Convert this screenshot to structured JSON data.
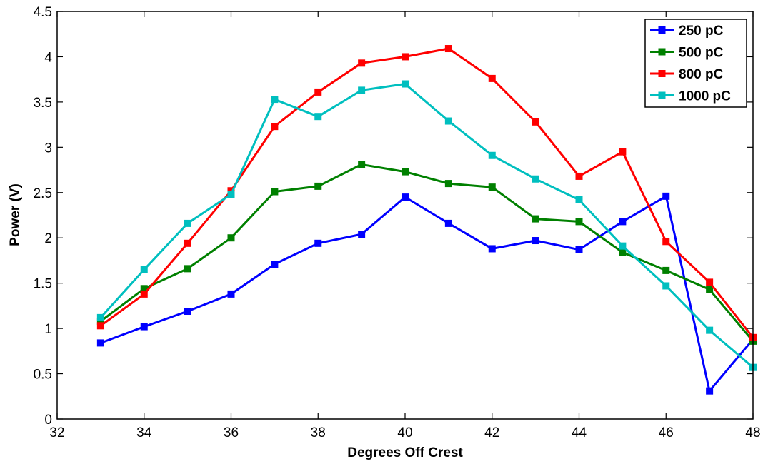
{
  "chart_data": {
    "type": "line",
    "title": "",
    "xlabel": "Degrees Off Crest",
    "ylabel": "Power (V)",
    "xlim": [
      32,
      48
    ],
    "ylim": [
      0,
      4.5
    ],
    "xticks": [
      32,
      34,
      36,
      38,
      40,
      42,
      44,
      46,
      48
    ],
    "yticks": [
      0,
      0.5,
      1,
      1.5,
      2,
      2.5,
      3,
      3.5,
      4,
      4.5
    ],
    "xtick_labels": [
      "32",
      "34",
      "36",
      "38",
      "40",
      "42",
      "44",
      "46",
      "48"
    ],
    "ytick_labels": [
      "0",
      "0.5",
      "1",
      "1.5",
      "2",
      "2.5",
      "3",
      "3.5",
      "4",
      "4.5"
    ],
    "grid": false,
    "legend_position": "top-right",
    "x": [
      33,
      34,
      35,
      36,
      37,
      38,
      39,
      40,
      41,
      42,
      43,
      44,
      45,
      46,
      47,
      48
    ],
    "series": [
      {
        "name": "250 pC",
        "color": "#0000ff",
        "marker": "square",
        "values": [
          0.84,
          1.02,
          1.19,
          1.38,
          1.71,
          1.94,
          2.04,
          2.45,
          2.16,
          1.88,
          1.97,
          1.87,
          2.18,
          2.46,
          0.31,
          0.88
        ]
      },
      {
        "name": "500 pC",
        "color": "#008000",
        "marker": "square",
        "values": [
          1.08,
          1.44,
          1.66,
          2.0,
          2.51,
          2.57,
          2.81,
          2.73,
          2.6,
          2.56,
          2.21,
          2.18,
          1.84,
          1.64,
          1.43,
          0.86
        ]
      },
      {
        "name": "800 pC",
        "color": "#ff0000",
        "marker": "square",
        "values": [
          1.03,
          1.38,
          1.94,
          2.52,
          3.23,
          3.61,
          3.93,
          4.0,
          4.09,
          3.76,
          3.28,
          2.68,
          2.95,
          1.96,
          1.51,
          0.9
        ]
      },
      {
        "name": "1000 pC",
        "color": "#00bfbf",
        "marker": "square",
        "values": [
          1.12,
          1.65,
          2.16,
          2.48,
          3.53,
          3.34,
          3.63,
          3.7,
          3.29,
          2.91,
          2.65,
          2.42,
          1.91,
          1.47,
          0.98,
          0.57
        ]
      }
    ]
  }
}
